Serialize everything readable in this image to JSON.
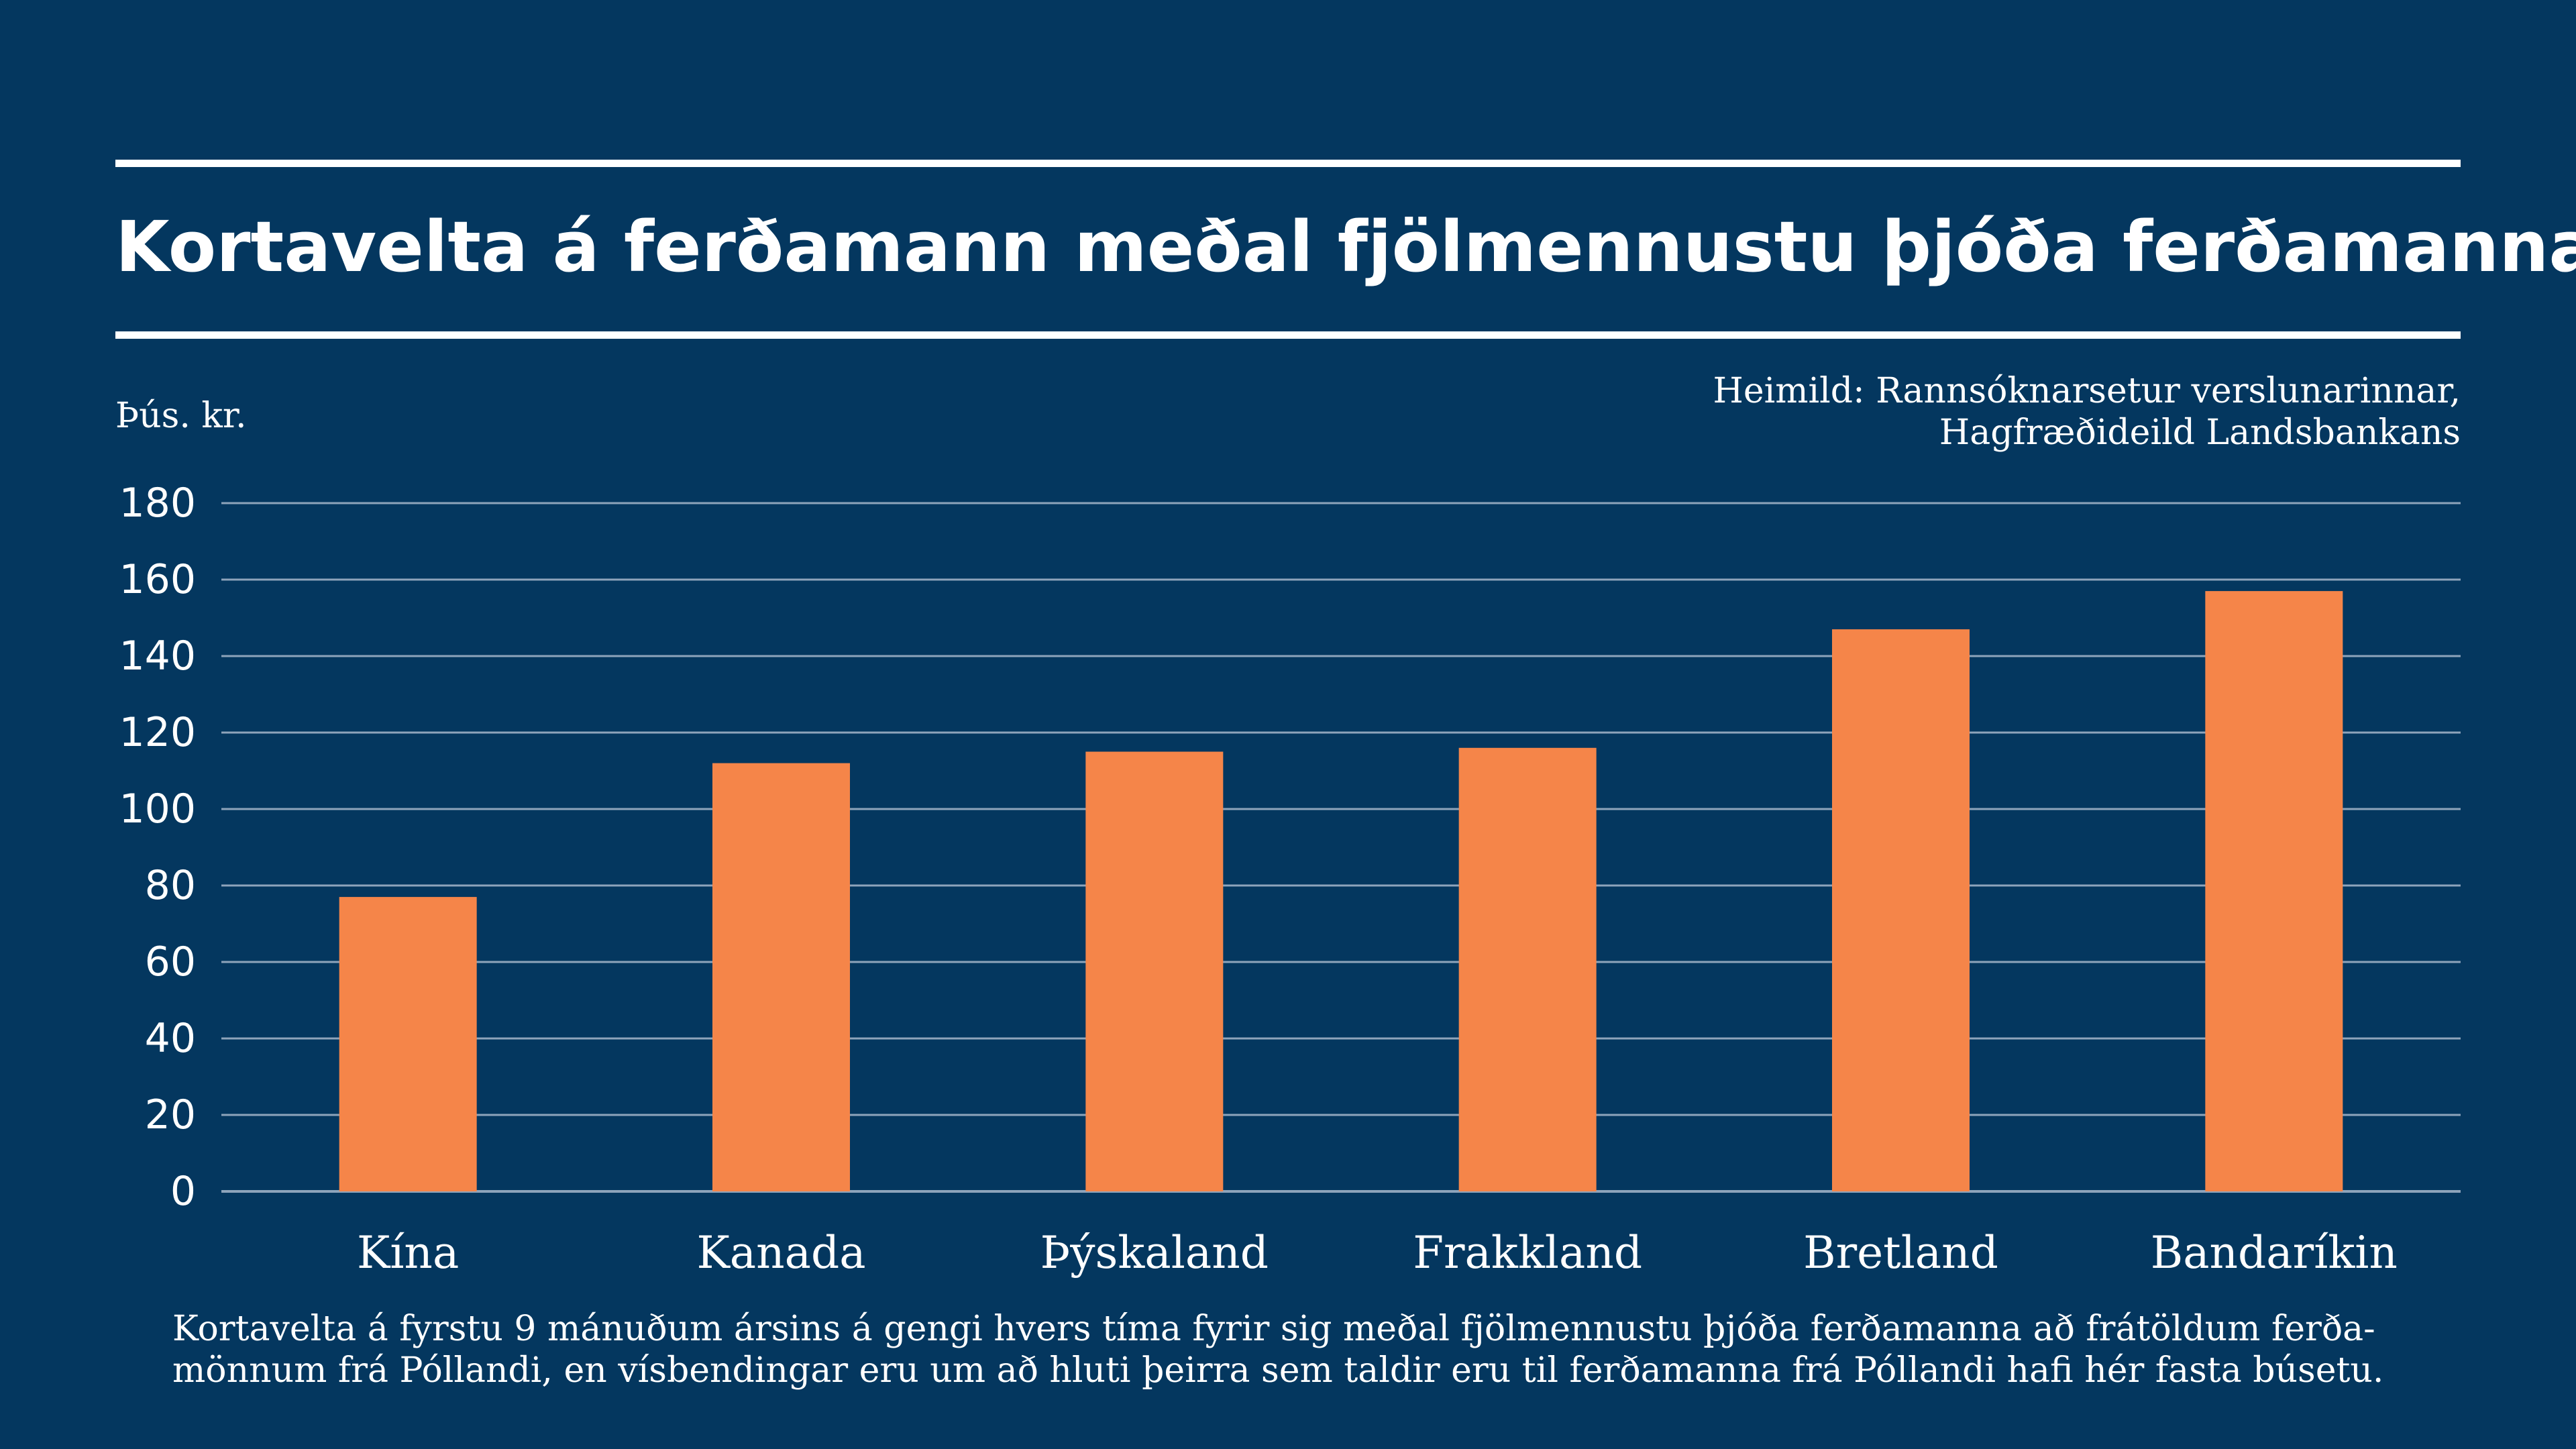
{
  "header": {
    "title": "Kortavelta á ferðamann meðal fjölmennustu þjóða ferðamanna"
  },
  "unit_label": "Þús. kr.",
  "source": {
    "line1": "Heimild: Rannsóknarsetur verslunarinnar,",
    "line2": "Hagfræðideild Landsbankans"
  },
  "footnote": {
    "line1": "Kortavelta á fyrstu 9 mánuðum ársins á gengi hvers tíma fyrir sig meðal fjölmennustu þjóða ferðamanna að frátöldum ferða-",
    "line2": "mönnum frá Póllandi, en vísbendingar eru um að hluti þeirra sem taldir eru til ferðamanna frá Póllandi hafi hér fasta búsetu."
  },
  "colors": {
    "background": "#04375f",
    "bar": "#f58549",
    "text": "#ffffff",
    "gridline": "#8ea4bb"
  },
  "chart_data": {
    "type": "bar",
    "categories": [
      "Kína",
      "Kanada",
      "Þýskaland",
      "Frakkland",
      "Bretland",
      "Bandaríkin"
    ],
    "values": [
      77,
      112,
      115,
      116,
      147,
      157
    ],
    "ylabel": "Þús. kr.",
    "ylim": [
      0,
      180
    ],
    "yticks": [
      0,
      20,
      40,
      60,
      80,
      100,
      120,
      140,
      160,
      180
    ],
    "grid": true,
    "legend": "none"
  }
}
